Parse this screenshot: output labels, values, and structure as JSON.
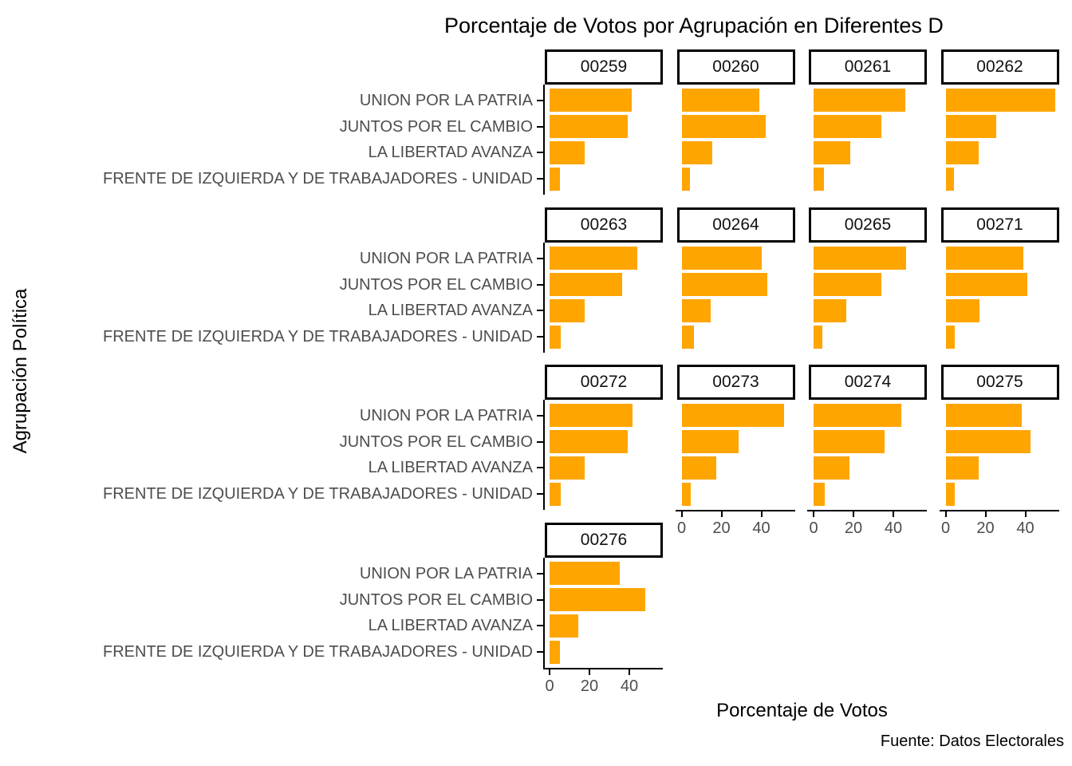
{
  "title": "Porcentaje de Votos por Agrupación en Diferentes D",
  "y_axis_title": "Agrupación Política",
  "x_axis_title": "Porcentaje de Votos",
  "caption": "Fuente: Datos Electorales",
  "colors": {
    "bar": "#FFA500",
    "axis_text": "#4D4D4D",
    "axis_line": "#000000",
    "strip_background": "#FFFFFF",
    "strip_border": "#000000",
    "panel_background": "#FFFFFF"
  },
  "chart_data": {
    "type": "bar",
    "orientation": "horizontal",
    "grid": false,
    "legend": "none",
    "title": "Porcentaje de Votos por Agrupación en Diferentes D",
    "xlabel": "Porcentaje de Votos",
    "ylabel": "Agrupación Política",
    "xlim": [
      0,
      57
    ],
    "x_ticks": [
      0,
      20,
      40
    ],
    "categories": [
      "UNION POR LA PATRIA",
      "JUNTOS POR EL CAMBIO",
      "LA LIBERTAD AVANZA",
      "FRENTE DE IZQUIERDA Y DE TRABAJADORES - UNIDAD"
    ],
    "facets": [
      {
        "label": "00259",
        "row": 0,
        "col": 0,
        "x_axis": false,
        "values": [
          41,
          39,
          17.5,
          5
        ]
      },
      {
        "label": "00260",
        "row": 0,
        "col": 1,
        "x_axis": false,
        "values": [
          39,
          42,
          15.5,
          4
        ]
      },
      {
        "label": "00261",
        "row": 0,
        "col": 2,
        "x_axis": false,
        "values": [
          46,
          34,
          18.5,
          5
        ]
      },
      {
        "label": "00262",
        "row": 0,
        "col": 3,
        "x_axis": false,
        "values": [
          55,
          25.5,
          16.5,
          4
        ]
      },
      {
        "label": "00263",
        "row": 1,
        "col": 0,
        "x_axis": false,
        "values": [
          44,
          36.5,
          17.5,
          5.5
        ]
      },
      {
        "label": "00264",
        "row": 1,
        "col": 1,
        "x_axis": false,
        "values": [
          40,
          43,
          14.5,
          6
        ]
      },
      {
        "label": "00265",
        "row": 1,
        "col": 2,
        "x_axis": false,
        "values": [
          46.5,
          34,
          16.5,
          4.5
        ]
      },
      {
        "label": "00271",
        "row": 1,
        "col": 3,
        "x_axis": false,
        "values": [
          39,
          41,
          17,
          4.5
        ]
      },
      {
        "label": "00272",
        "row": 2,
        "col": 0,
        "x_axis": false,
        "values": [
          41.5,
          39,
          17.5,
          5.5
        ]
      },
      {
        "label": "00273",
        "row": 2,
        "col": 1,
        "x_axis": true,
        "values": [
          51.5,
          28.5,
          17.5,
          4.5
        ]
      },
      {
        "label": "00274",
        "row": 2,
        "col": 2,
        "x_axis": true,
        "values": [
          44,
          35.5,
          18,
          5.5
        ]
      },
      {
        "label": "00275",
        "row": 2,
        "col": 3,
        "x_axis": true,
        "values": [
          38,
          42.5,
          16.5,
          4.5
        ]
      },
      {
        "label": "00276",
        "row": 3,
        "col": 0,
        "x_axis": true,
        "values": [
          35,
          48,
          14.5,
          5
        ]
      }
    ]
  }
}
